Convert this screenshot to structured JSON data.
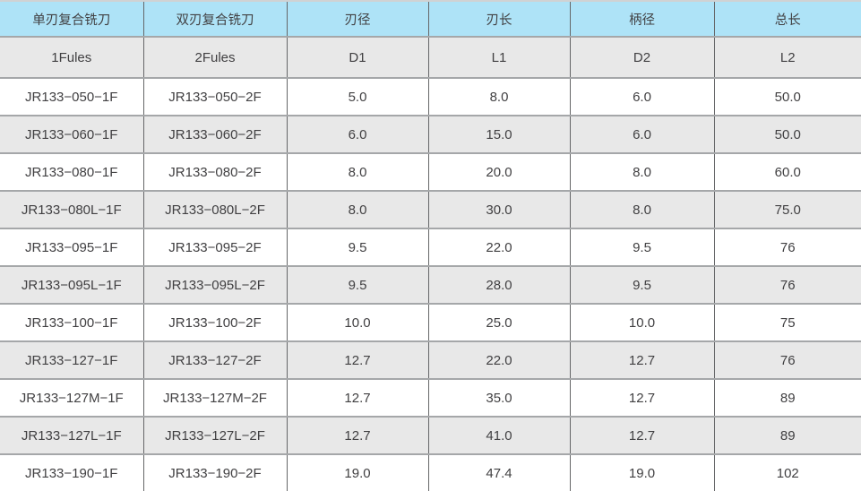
{
  "table": {
    "header_cn": [
      "单刃复合铣刀",
      "双刃复合铣刀",
      "刃径",
      "刃长",
      "柄径",
      "总长"
    ],
    "header_en": [
      "1Fules",
      "2Fules",
      "D1",
      "L1",
      "D2",
      "L2"
    ],
    "rows": [
      [
        "JR133−050−1F",
        "JR133−050−2F",
        "5.0",
        "8.0",
        "6.0",
        "50.0"
      ],
      [
        "JR133−060−1F",
        "JR133−060−2F",
        "6.0",
        "15.0",
        "6.0",
        "50.0"
      ],
      [
        "JR133−080−1F",
        "JR133−080−2F",
        "8.0",
        "20.0",
        "8.0",
        "60.0"
      ],
      [
        "JR133−080L−1F",
        "JR133−080L−2F",
        "8.0",
        "30.0",
        "8.0",
        "75.0"
      ],
      [
        "JR133−095−1F",
        "JR133−095−2F",
        "9.5",
        "22.0",
        "9.5",
        "76"
      ],
      [
        "JR133−095L−1F",
        "JR133−095L−2F",
        "9.5",
        "28.0",
        "9.5",
        "76"
      ],
      [
        "JR133−100−1F",
        "JR133−100−2F",
        "10.0",
        "25.0",
        "10.0",
        "75"
      ],
      [
        "JR133−127−1F",
        "JR133−127−2F",
        "12.7",
        "22.0",
        "12.7",
        "76"
      ],
      [
        "JR133−127M−1F",
        "JR133−127M−2F",
        "12.7",
        "35.0",
        "12.7",
        "89"
      ],
      [
        "JR133−127L−1F",
        "JR133−127L−2F",
        "12.7",
        "41.0",
        "12.7",
        "89"
      ],
      [
        "JR133−190−1F",
        "JR133−190−2F",
        "19.0",
        "47.4",
        "19.0",
        "102"
      ]
    ]
  },
  "colors": {
    "header_blue": "#aee3f7",
    "row_gray": "#e8e8e8",
    "row_white": "#ffffff",
    "border_horizontal": "#a5a7a9",
    "border_vertical": "#656668",
    "text": "#414042"
  }
}
